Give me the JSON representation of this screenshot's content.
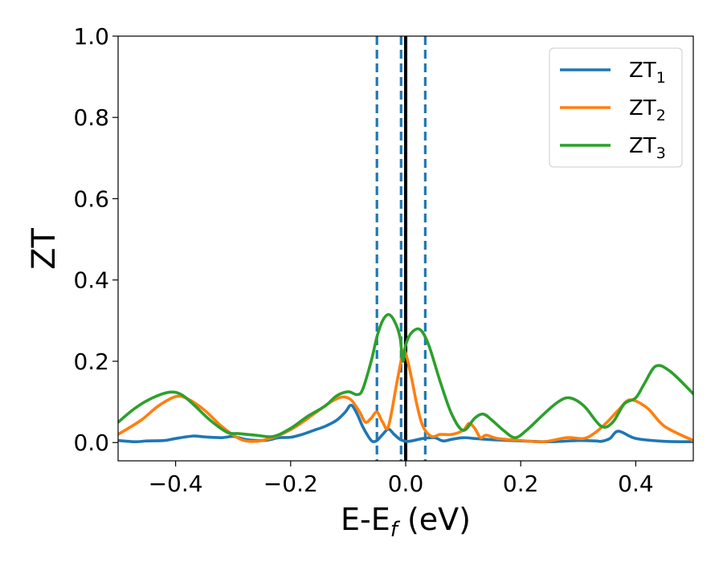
{
  "chart_data": {
    "type": "line",
    "title": "",
    "xlabel": "E-E",
    "xlabel_sub": "f",
    "xlabel_unit": " (eV)",
    "ylabel": "ZT",
    "xlim": [
      -0.5,
      0.5
    ],
    "ylim": [
      -0.045,
      1.0
    ],
    "xticks": [
      -0.4,
      -0.2,
      0.0,
      0.2,
      0.4
    ],
    "xtick_labels": [
      "−0.4",
      "−0.2",
      "0.0",
      "0.2",
      "0.4"
    ],
    "yticks": [
      0.0,
      0.2,
      0.4,
      0.6,
      0.8,
      1.0
    ],
    "ytick_labels": [
      "0.0",
      "0.2",
      "0.4",
      "0.6",
      "0.8",
      "1.0"
    ],
    "grid": false,
    "legend_position": "top-right",
    "vlines": [
      {
        "x": -0.05,
        "style": "dashed",
        "color": "#1f77b4"
      },
      {
        "x": -0.008,
        "style": "dashed",
        "color": "#1f77b4"
      },
      {
        "x": 0.034,
        "style": "dashed",
        "color": "#1f77b4"
      },
      {
        "x": 0.0,
        "style": "solid",
        "color": "#000000"
      }
    ],
    "series": [
      {
        "name": "ZT",
        "name_sub": "1",
        "color": "#1f77b4",
        "x": [
          -0.5,
          -0.47,
          -0.45,
          -0.42,
          -0.4,
          -0.37,
          -0.35,
          -0.32,
          -0.3,
          -0.28,
          -0.26,
          -0.24,
          -0.22,
          -0.2,
          -0.18,
          -0.16,
          -0.14,
          -0.12,
          -0.105,
          -0.095,
          -0.085,
          -0.075,
          -0.065,
          -0.058,
          -0.05,
          -0.04,
          -0.03,
          -0.02,
          -0.01,
          0.0,
          0.01,
          0.03,
          0.05,
          0.065,
          0.08,
          0.1,
          0.12,
          0.15,
          0.2,
          0.25,
          0.3,
          0.33,
          0.34,
          0.355,
          0.37,
          0.4,
          0.45,
          0.5
        ],
        "y": [
          0.005,
          0.002,
          0.004,
          0.005,
          0.01,
          0.016,
          0.014,
          0.012,
          0.015,
          0.008,
          0.005,
          0.006,
          0.012,
          0.013,
          0.02,
          0.03,
          0.04,
          0.055,
          0.075,
          0.092,
          0.072,
          0.04,
          0.015,
          0.003,
          0.005,
          0.02,
          0.033,
          0.02,
          0.008,
          0.003,
          0.004,
          0.01,
          0.012,
          0.004,
          0.008,
          0.012,
          0.01,
          0.007,
          0.004,
          0.002,
          0.005,
          0.004,
          0.003,
          0.01,
          0.028,
          0.01,
          0.003,
          0.002
        ]
      },
      {
        "name": "ZT",
        "name_sub": "2",
        "color": "#ff7f0e",
        "x": [
          -0.5,
          -0.46,
          -0.43,
          -0.4,
          -0.38,
          -0.35,
          -0.32,
          -0.29,
          -0.27,
          -0.25,
          -0.22,
          -0.19,
          -0.16,
          -0.13,
          -0.11,
          -0.095,
          -0.08,
          -0.07,
          -0.06,
          -0.05,
          -0.04,
          -0.03,
          -0.015,
          -0.005,
          0.0,
          0.01,
          0.02,
          0.03,
          0.045,
          0.06,
          0.08,
          0.1,
          0.11,
          0.12,
          0.13,
          0.14,
          0.16,
          0.2,
          0.24,
          0.28,
          0.31,
          0.33,
          0.35,
          0.37,
          0.39,
          0.42,
          0.45,
          0.5
        ],
        "y": [
          0.02,
          0.055,
          0.09,
          0.113,
          0.108,
          0.08,
          0.04,
          0.01,
          0.003,
          0.005,
          0.018,
          0.04,
          0.07,
          0.1,
          0.112,
          0.105,
          0.075,
          0.05,
          0.06,
          0.075,
          0.05,
          0.04,
          0.15,
          0.22,
          0.22,
          0.16,
          0.09,
          0.04,
          0.015,
          0.02,
          0.02,
          0.03,
          0.047,
          0.035,
          0.012,
          0.018,
          0.01,
          0.005,
          0.002,
          0.012,
          0.01,
          0.025,
          0.05,
          0.08,
          0.105,
          0.085,
          0.04,
          0.005
        ]
      },
      {
        "name": "ZT",
        "name_sub": "3",
        "color": "#2ca02c",
        "x": [
          -0.5,
          -0.47,
          -0.44,
          -0.41,
          -0.39,
          -0.37,
          -0.34,
          -0.31,
          -0.29,
          -0.26,
          -0.23,
          -0.2,
          -0.17,
          -0.14,
          -0.12,
          -0.1,
          -0.085,
          -0.075,
          -0.06,
          -0.05,
          -0.04,
          -0.03,
          -0.02,
          -0.01,
          -0.005,
          0.0,
          0.01,
          0.025,
          0.04,
          0.06,
          0.08,
          0.1,
          0.12,
          0.135,
          0.15,
          0.17,
          0.19,
          0.21,
          0.24,
          0.265,
          0.285,
          0.31,
          0.34,
          0.36,
          0.38,
          0.4,
          0.415,
          0.435,
          0.46,
          0.5
        ],
        "y": [
          0.05,
          0.085,
          0.11,
          0.124,
          0.118,
          0.095,
          0.055,
          0.025,
          0.022,
          0.018,
          0.015,
          0.035,
          0.065,
          0.09,
          0.115,
          0.125,
          0.118,
          0.13,
          0.2,
          0.26,
          0.3,
          0.315,
          0.3,
          0.26,
          0.2,
          0.24,
          0.27,
          0.278,
          0.24,
          0.15,
          0.07,
          0.03,
          0.06,
          0.07,
          0.055,
          0.03,
          0.012,
          0.03,
          0.07,
          0.1,
          0.11,
          0.09,
          0.04,
          0.05,
          0.095,
          0.11,
          0.145,
          0.188,
          0.175,
          0.12
        ]
      }
    ]
  }
}
